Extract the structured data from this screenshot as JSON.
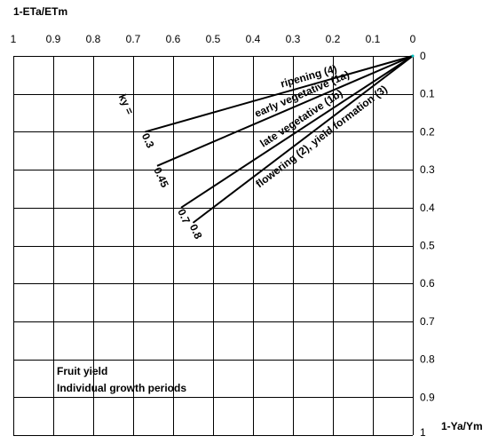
{
  "chart_data": {
    "type": "line",
    "title": "",
    "xlabel": "1-ETa/ETm",
    "ylabel": "1-Ya/Ym",
    "x_axis": {
      "reversed": true,
      "range": [
        1,
        0
      ],
      "ticks": [
        "1",
        "0.9",
        "0.8",
        "0.7",
        "0.6",
        "0.5",
        "0.4",
        "0.3",
        "0.2",
        "0.1",
        "0"
      ],
      "position": "top"
    },
    "y_axis": {
      "reversed": true,
      "range": [
        0,
        1
      ],
      "ticks": [
        "0",
        "0.1",
        "0.2",
        "0.3",
        "0.4",
        "0.5",
        "0.6",
        "0.7",
        "0.8",
        "0.9",
        "1"
      ],
      "position": "right"
    },
    "grid": true,
    "series": [
      {
        "name": "ripening (4)",
        "ky_label": "0.3",
        "points": [
          [
            0,
            0
          ],
          [
            0.67,
            0.2
          ]
        ]
      },
      {
        "name": "early vegetative (1a)",
        "ky_label": "0.45",
        "points": [
          [
            0,
            0
          ],
          [
            0.64,
            0.29
          ]
        ]
      },
      {
        "name": "late vegetative (1b)",
        "ky_label": "0.7",
        "points": [
          [
            0,
            0
          ],
          [
            0.58,
            0.4
          ]
        ]
      },
      {
        "name": "flowering (2), yield formation (3)",
        "ky_label": "0.8",
        "points": [
          [
            0,
            0
          ],
          [
            0.55,
            0.44
          ]
        ]
      }
    ],
    "ky_prefix": "ky =",
    "annotation_lines": [
      "Fruit yield",
      "Individual growth periods"
    ]
  }
}
